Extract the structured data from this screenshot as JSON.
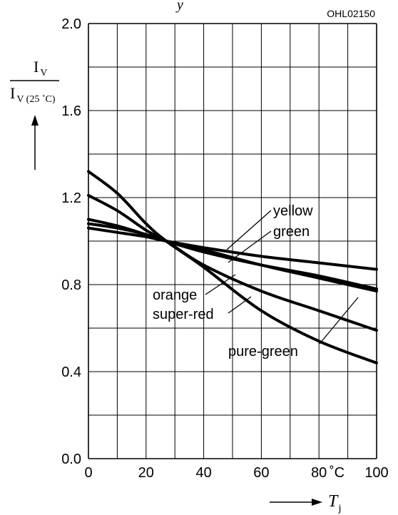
{
  "header": {
    "top_label": "y",
    "code": "OHL02150"
  },
  "y_axis": {
    "numerator": {
      "main": "I",
      "sub": "V"
    },
    "denominator": {
      "main": "I",
      "sub": "V (25 ˚C)"
    }
  },
  "x_axis": {
    "unit": "˚C",
    "label": {
      "main": "T",
      "sub": "j"
    }
  },
  "chart_data": {
    "type": "line",
    "xlim": [
      0,
      100
    ],
    "ylim": [
      0.0,
      2.0
    ],
    "grid": true,
    "x_ticks": [
      "0",
      "20",
      "40",
      "60",
      "80",
      "100"
    ],
    "y_ticks": [
      "0.0",
      "0.4",
      "0.8",
      "1.2",
      "1.6",
      "2.0"
    ],
    "series": [
      {
        "name": "yellow",
        "x": [
          0,
          10,
          20,
          27,
          40,
          60,
          80,
          100
        ],
        "y": [
          1.06,
          1.04,
          1.02,
          1.0,
          0.97,
          0.93,
          0.9,
          0.87
        ]
      },
      {
        "name": "green",
        "x": [
          0,
          10,
          20,
          27,
          40,
          60,
          80,
          100
        ],
        "y": [
          1.08,
          1.06,
          1.03,
          1.0,
          0.96,
          0.89,
          0.83,
          0.77
        ]
      },
      {
        "name": "orange",
        "x": [
          0,
          10,
          20,
          27,
          40,
          60,
          80,
          100
        ],
        "y": [
          1.1,
          1.07,
          1.03,
          1.0,
          0.95,
          0.89,
          0.84,
          0.78
        ]
      },
      {
        "name": "super-red",
        "x": [
          0,
          10,
          20,
          27,
          40,
          60,
          80,
          100
        ],
        "y": [
          1.21,
          1.14,
          1.05,
          1.0,
          0.89,
          0.77,
          0.68,
          0.59
        ]
      },
      {
        "name": "pure-green",
        "x": [
          0,
          10,
          20,
          27,
          40,
          60,
          80,
          100
        ],
        "y": [
          1.32,
          1.22,
          1.08,
          1.0,
          0.88,
          0.68,
          0.54,
          0.44
        ]
      }
    ],
    "annotations": [
      {
        "text": "yellow",
        "series": "yellow"
      },
      {
        "text": "green",
        "series": "green"
      },
      {
        "text": "orange",
        "series": "orange"
      },
      {
        "text": "super-red",
        "series": "super-red"
      },
      {
        "text": "pure-green",
        "series": "pure-green"
      }
    ]
  }
}
